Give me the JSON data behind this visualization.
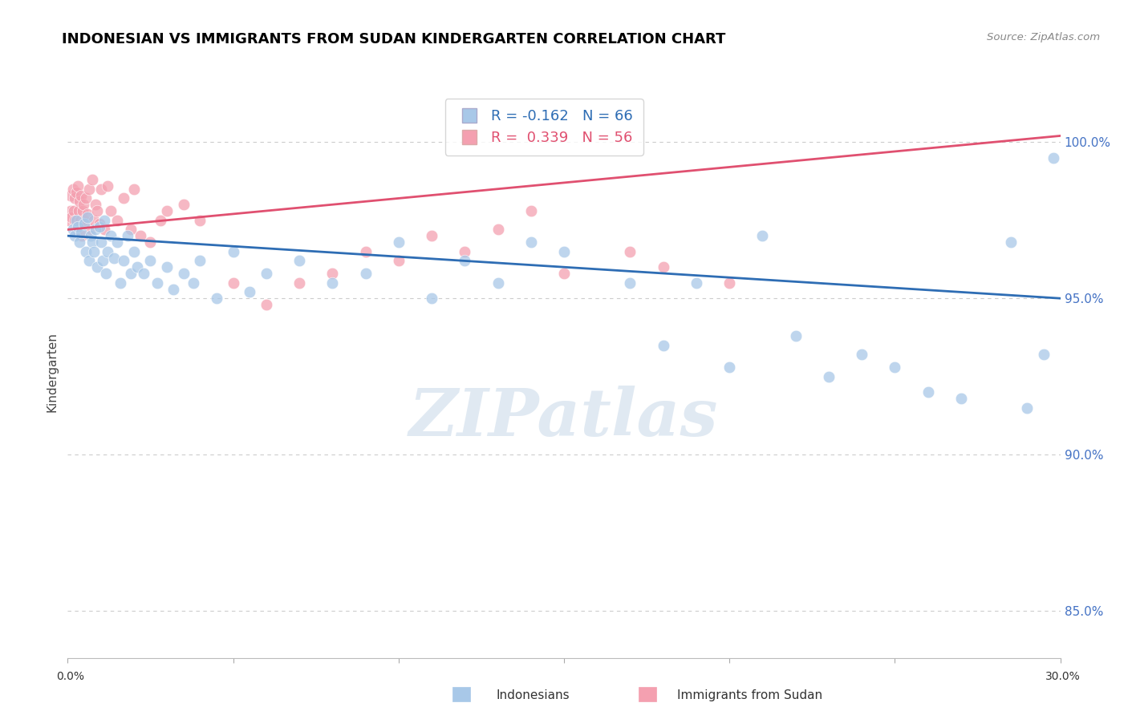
{
  "title": "INDONESIAN VS IMMIGRANTS FROM SUDAN KINDERGARTEN CORRELATION CHART",
  "source": "Source: ZipAtlas.com",
  "ylabel": "Kindergarten",
  "xlim": [
    0.0,
    30.0
  ],
  "ylim": [
    83.5,
    101.8
  ],
  "yticks": [
    85.0,
    90.0,
    95.0,
    100.0
  ],
  "ytick_labels": [
    "85.0%",
    "90.0%",
    "95.0%",
    "100.0%"
  ],
  "legend_r1": "R = -0.162",
  "legend_n1": "N = 66",
  "legend_r2": "R =  0.339",
  "legend_n2": "N = 56",
  "blue_color": "#a8c8e8",
  "pink_color": "#f4a0b0",
  "blue_line_color": "#2e6db4",
  "pink_line_color": "#e05070",
  "blue_x": [
    0.15,
    0.2,
    0.25,
    0.3,
    0.35,
    0.4,
    0.5,
    0.55,
    0.6,
    0.65,
    0.7,
    0.75,
    0.8,
    0.85,
    0.9,
    0.95,
    1.0,
    1.05,
    1.1,
    1.15,
    1.2,
    1.3,
    1.4,
    1.5,
    1.6,
    1.7,
    1.8,
    1.9,
    2.0,
    2.1,
    2.3,
    2.5,
    2.7,
    3.0,
    3.2,
    3.5,
    3.8,
    4.0,
    4.5,
    5.0,
    5.5,
    6.0,
    7.0,
    8.0,
    9.0,
    10.0,
    11.0,
    12.0,
    13.0,
    14.0,
    15.0,
    17.0,
    18.0,
    19.0,
    20.0,
    21.0,
    22.0,
    23.0,
    24.0,
    25.0,
    26.0,
    27.0,
    28.5,
    29.0,
    29.5,
    29.8
  ],
  "blue_y": [
    97.2,
    97.0,
    97.5,
    97.3,
    96.8,
    97.1,
    97.4,
    96.5,
    97.6,
    96.2,
    97.0,
    96.8,
    96.5,
    97.2,
    96.0,
    97.3,
    96.8,
    96.2,
    97.5,
    95.8,
    96.5,
    97.0,
    96.3,
    96.8,
    95.5,
    96.2,
    97.0,
    95.8,
    96.5,
    96.0,
    95.8,
    96.2,
    95.5,
    96.0,
    95.3,
    95.8,
    95.5,
    96.2,
    95.0,
    96.5,
    95.2,
    95.8,
    96.2,
    95.5,
    95.8,
    96.8,
    95.0,
    96.2,
    95.5,
    96.8,
    96.5,
    95.5,
    93.5,
    95.5,
    92.8,
    97.0,
    93.8,
    92.5,
    93.2,
    92.8,
    92.0,
    91.8,
    96.8,
    91.5,
    93.2,
    99.5
  ],
  "pink_x": [
    0.05,
    0.08,
    0.1,
    0.12,
    0.15,
    0.18,
    0.2,
    0.22,
    0.25,
    0.28,
    0.3,
    0.32,
    0.35,
    0.38,
    0.4,
    0.43,
    0.45,
    0.48,
    0.5,
    0.55,
    0.6,
    0.65,
    0.7,
    0.75,
    0.8,
    0.85,
    0.9,
    0.95,
    1.0,
    1.1,
    1.2,
    1.3,
    1.5,
    1.7,
    1.9,
    2.0,
    2.2,
    2.5,
    2.8,
    3.0,
    3.5,
    4.0,
    5.0,
    6.0,
    7.0,
    8.0,
    9.0,
    10.0,
    11.0,
    12.0,
    13.0,
    14.0,
    15.0,
    17.0,
    18.0,
    20.0
  ],
  "pink_y": [
    97.5,
    97.8,
    98.3,
    97.6,
    98.5,
    97.8,
    98.2,
    97.5,
    98.4,
    97.2,
    98.6,
    97.8,
    98.1,
    97.5,
    98.3,
    97.0,
    97.8,
    98.0,
    97.5,
    98.2,
    97.7,
    98.5,
    97.2,
    98.8,
    97.5,
    98.0,
    97.8,
    97.4,
    98.5,
    97.2,
    98.6,
    97.8,
    97.5,
    98.2,
    97.2,
    98.5,
    97.0,
    96.8,
    97.5,
    97.8,
    98.0,
    97.5,
    95.5,
    94.8,
    95.5,
    95.8,
    96.5,
    96.2,
    97.0,
    96.5,
    97.2,
    97.8,
    95.8,
    96.5,
    96.0,
    95.5
  ],
  "blue_trend_x": [
    0.0,
    30.0
  ],
  "blue_trend_y": [
    97.0,
    95.0
  ],
  "pink_trend_x": [
    0.0,
    30.0
  ],
  "pink_trend_y": [
    97.2,
    100.2
  ],
  "watermark_text": "ZIPatlas",
  "background_color": "#ffffff",
  "grid_color": "#cccccc",
  "title_fontsize": 13,
  "tick_label_color": "#4472c4",
  "legend_border_color": "#cccccc",
  "bottom_label1": "Indonesians",
  "bottom_label2": "Immigrants from Sudan"
}
